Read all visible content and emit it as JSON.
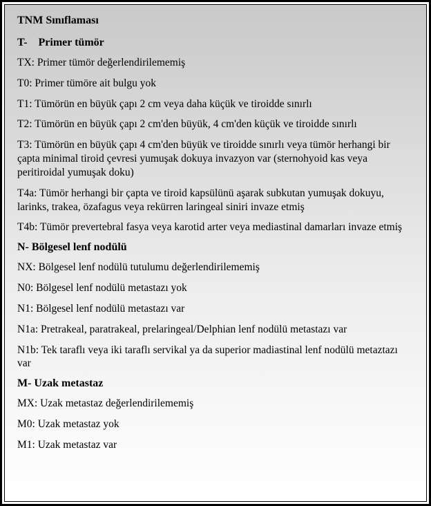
{
  "title": "TNM Sınıflaması",
  "sections": {
    "t": {
      "header": "T- Primer tümör",
      "items": [
        {
          "code": "TX:",
          "desc": "  Primer tümör değerlendirilememiş"
        },
        {
          "code": "T0:",
          "desc": "   Primer tümöre ait bulgu yok"
        },
        {
          "code": "T1:",
          "desc": "  Tümörün en büyük çapı 2 cm veya daha küçük ve tiroidde sınırlı"
        },
        {
          "code": "T2:",
          "desc": "  Tümörün en büyük çapı 2 cm'den büyük, 4 cm'den küçük ve tiroidde sınırlı"
        },
        {
          "code": "T3:",
          "desc": "  Tümörün en büyük çapı 4 cm'den büyük ve tiroidde sınırlı veya tümör herhangi bir çapta minimal tiroid çevresi yumuşak dokuya invazyon var (sternohyoid kas veya peritiroidal yumuşak doku)"
        },
        {
          "code": "T4a:",
          "desc": " Tümör herhangi bir çapta ve tiroid kapsülünü aşarak subkutan yumuşak dokuyu, larinks, trakea, özafagus veya rekürren laringeal siniri invaze etmiş"
        },
        {
          "code": "T4b:",
          "desc": " Tümör prevertebral fasya veya karotid arter veya mediastinal damarları invaze etmiş"
        }
      ]
    },
    "n": {
      "header": "N-  Bölgesel lenf nodülü",
      "items": [
        {
          "code": "NX:",
          "desc": "  Bölgesel lenf nodülü tutulumu değerlendirilememiş"
        },
        {
          "code": "N0:",
          "desc": "   Bölgesel lenf nodülü metastazı yok"
        },
        {
          "code": "N1:",
          "desc": "   Bölgesel lenf nodülü metastazı var"
        },
        {
          "code": "N1a:",
          "desc": " Pretrakeal, paratrakeal, prelaringeal/Delphian lenf nodülü metastazı var"
        },
        {
          "code": "N1b:",
          "desc": " Tek taraflı veya iki taraflı servikal ya da superior madiastinal lenf nodülü metaztazı var"
        }
      ]
    },
    "m": {
      "header": "M- Uzak metastaz",
      "items": [
        {
          "code": "MX:",
          "desc": "  Uzak metastaz değerlendirilememiş"
        },
        {
          "code": "M0:",
          "desc": "  Uzak metastaz yok"
        },
        {
          "code": "M1:",
          "desc": "  Uzak metastaz var"
        }
      ]
    }
  },
  "colors": {
    "text": "#000000",
    "border": "#000000",
    "gradient_top": "#c9c9c9",
    "gradient_bottom": "#ffffff"
  },
  "typography": {
    "font_family": "Times New Roman",
    "title_fontsize_pt": 12,
    "body_fontsize_pt": 11.5,
    "title_weight": "bold",
    "header_weight": "bold"
  }
}
